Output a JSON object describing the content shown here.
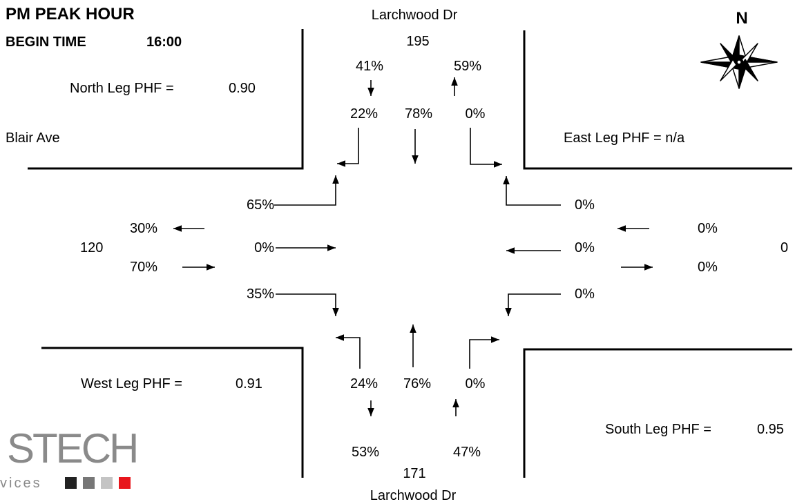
{
  "header": {
    "title": "PM PEAK HOUR",
    "begin_label": "BEGIN TIME",
    "begin_time": "16:00"
  },
  "north_arrow": {
    "label": "N",
    "icon": "compass-rose-icon"
  },
  "streets": {
    "north": "Larchwood Dr",
    "south": "Larchwood Dr",
    "west": "Blair Ave"
  },
  "phf": {
    "north": {
      "label": "North Leg PHF =",
      "value": "0.90"
    },
    "east": {
      "label": "East Leg PHF = n/a"
    },
    "west": {
      "label": "West Leg PHF =",
      "value": "0.91"
    },
    "south": {
      "label": "South Leg PHF =",
      "value": "0.95"
    }
  },
  "north_leg": {
    "total": "195",
    "in_pct": "41%",
    "out_pct": "59%",
    "right": "22%",
    "thru": "78%",
    "left": "0%"
  },
  "south_leg": {
    "total": "171",
    "out_pct": "53%",
    "in_pct": "47%",
    "right": "24%",
    "thru": "76%",
    "left": "0%"
  },
  "west_leg": {
    "total": "120",
    "out_pct": "30%",
    "in_pct": "70%",
    "left": "65%",
    "thru": "0%",
    "right": "35%"
  },
  "east_leg": {
    "total": "0",
    "in_pct": "0%",
    "out_pct": "0%",
    "right": "0%",
    "thru": "0%",
    "left": "0%"
  },
  "logo": {
    "wordmark": "STECH",
    "tagline": "vices",
    "square_colors": [
      "#222222",
      "#777777",
      "#c4c4c4",
      "#e8161c"
    ]
  }
}
